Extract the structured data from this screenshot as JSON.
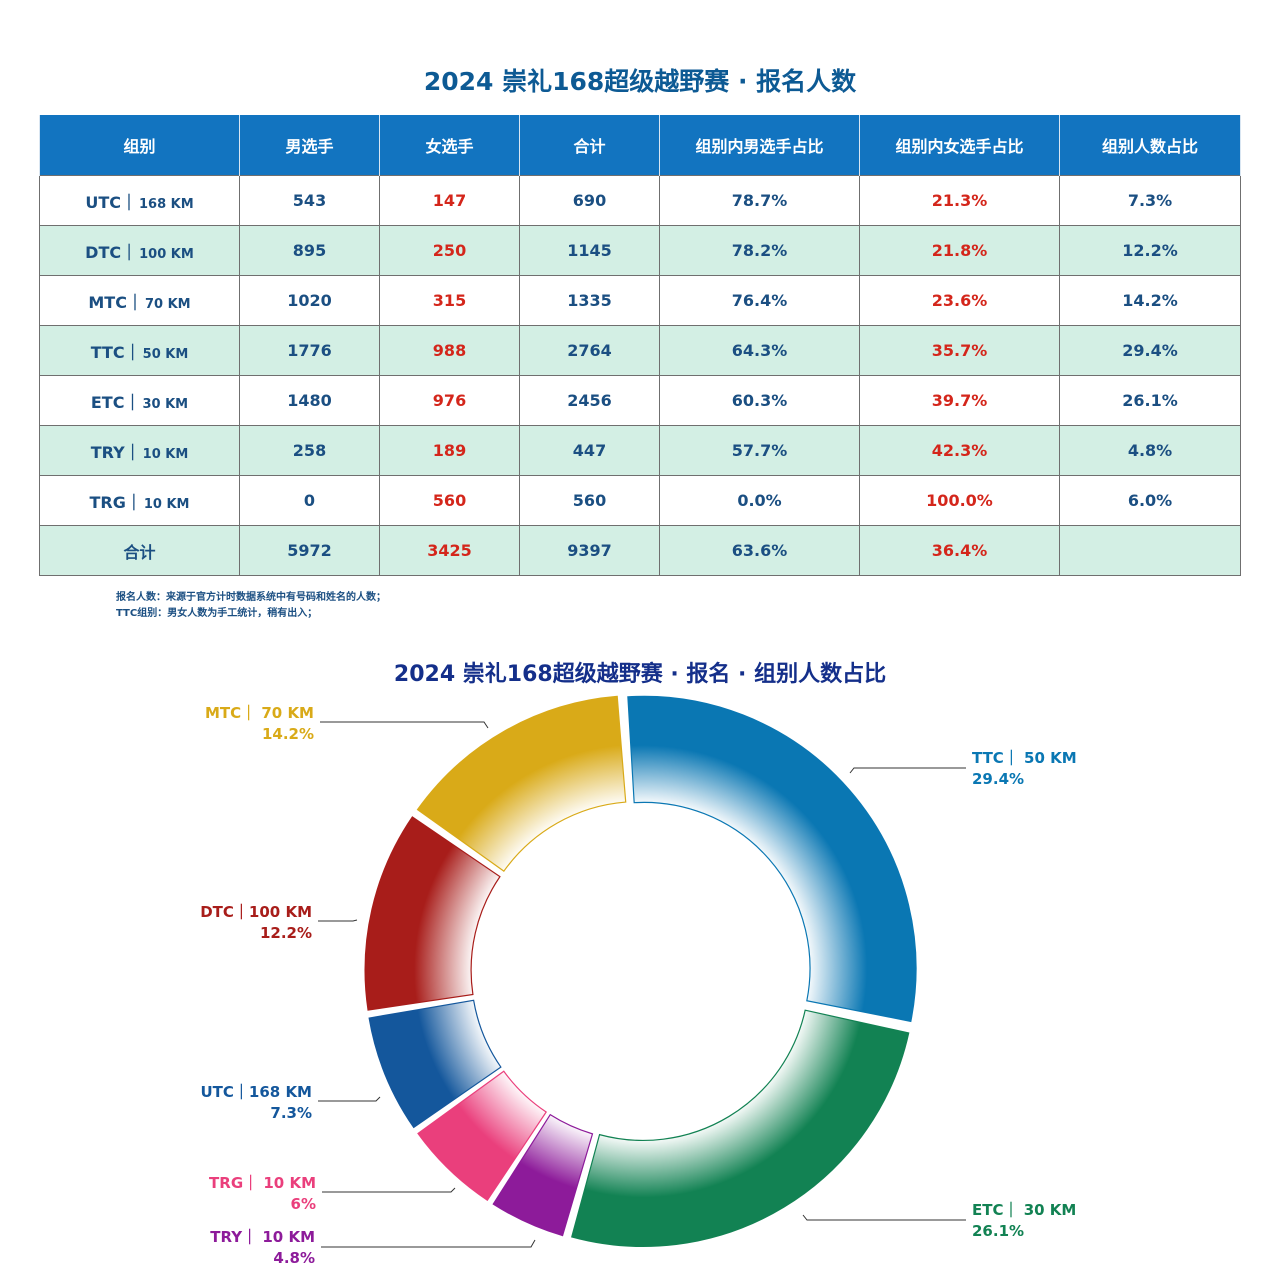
{
  "title": "2024 崇礼168超级越野赛 · 报名人数",
  "table": {
    "headers": [
      "组别",
      "男选手",
      "女选手",
      "合计",
      "组别内男选手占比",
      "组别内女选手占比",
      "组别人数占比"
    ],
    "rows": [
      {
        "code": "UTC｜",
        "dist": "168 KM",
        "male": "543",
        "female": "147",
        "total": "690",
        "male_pct": "78.7%",
        "female_pct": "21.3%",
        "share": "7.3%"
      },
      {
        "code": "DTC｜",
        "dist": "100 KM",
        "male": "895",
        "female": "250",
        "total": "1145",
        "male_pct": "78.2%",
        "female_pct": "21.8%",
        "share": "12.2%"
      },
      {
        "code": "MTC｜",
        "dist": "70 KM",
        "male": "1020",
        "female": "315",
        "total": "1335",
        "male_pct": "76.4%",
        "female_pct": "23.6%",
        "share": "14.2%"
      },
      {
        "code": "TTC｜",
        "dist": "50 KM",
        "male": "1776",
        "female": "988",
        "total": "2764",
        "male_pct": "64.3%",
        "female_pct": "35.7%",
        "share": "29.4%"
      },
      {
        "code": "ETC｜",
        "dist": "30 KM",
        "male": "1480",
        "female": "976",
        "total": "2456",
        "male_pct": "60.3%",
        "female_pct": "39.7%",
        "share": "26.1%"
      },
      {
        "code": "TRY｜",
        "dist": "10 KM",
        "male": "258",
        "female": "189",
        "total": "447",
        "male_pct": "57.7%",
        "female_pct": "42.3%",
        "share": "4.8%"
      },
      {
        "code": "TRG｜",
        "dist": "10 KM",
        "male": "0",
        "female": "560",
        "total": "560",
        "male_pct": "0.0%",
        "female_pct": "100.0%",
        "share": "6.0%"
      }
    ],
    "total": {
      "label": "合计",
      "male": "5972",
      "female": "3425",
      "total": "9397",
      "male_pct": "63.6%",
      "female_pct": "36.4%",
      "share": ""
    }
  },
  "notes": [
    "报名人数：来源于官方计时数据系统中有号码和姓名的人数；",
    "TTC组别：男女人数为手工统计，稍有出入；"
  ],
  "chart_data": {
    "type": "pie",
    "donut": true,
    "title": "2024 崇礼168超级越野赛 · 报名 · 组别人数占比",
    "slices": [
      {
        "label": "TTC｜ 50 KM",
        "pct_label": "29.4%",
        "value": 29.4,
        "color": "#0a77b3"
      },
      {
        "label": "ETC｜ 30 KM",
        "pct_label": "26.1%",
        "value": 26.1,
        "color": "#128253"
      },
      {
        "label": "TRY｜ 10 KM",
        "pct_label": "4.8%",
        "value": 4.8,
        "color": "#8d1b9a"
      },
      {
        "label": "TRG｜ 10 KM",
        "pct_label": "6%",
        "value": 6.0,
        "color": "#ea3f7c"
      },
      {
        "label": "UTC｜168 KM",
        "pct_label": "7.3%",
        "value": 7.3,
        "color": "#14579c"
      },
      {
        "label": "DTC｜100 KM",
        "pct_label": "12.2%",
        "value": 12.2,
        "color": "#a81d1a"
      },
      {
        "label": "MTC｜ 70 KM",
        "pct_label": "14.2%",
        "value": 14.2,
        "color": "#d9aa18"
      }
    ]
  }
}
